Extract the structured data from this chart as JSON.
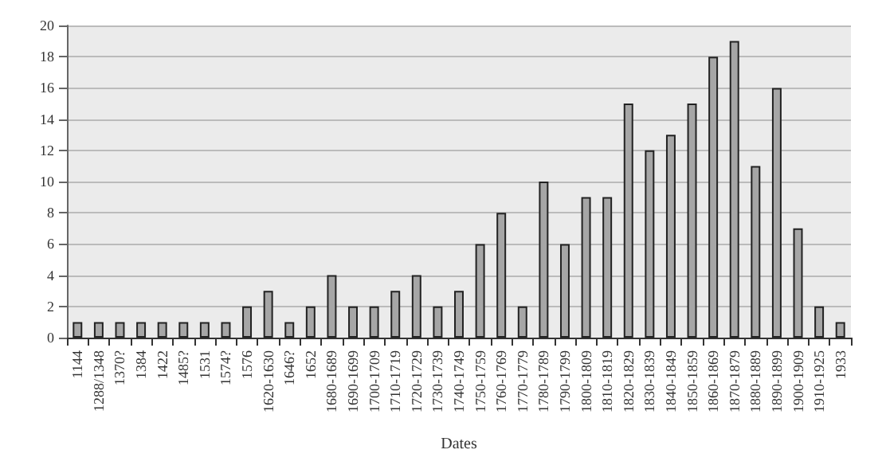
{
  "chart_data": {
    "type": "bar",
    "xlabel": "Dates",
    "categories": [
      "1144",
      "1288/1348",
      "1370?",
      "1384",
      "1422",
      "1485?",
      "1531",
      "1574?",
      "1576",
      "1620-1630",
      "1646?",
      "1652",
      "1680-1689",
      "1690-1699",
      "1700-1709",
      "1710-1719",
      "1720-1729",
      "1730-1739",
      "1740-1749",
      "1750-1759",
      "1760-1769",
      "1770-1779",
      "1780-1789",
      "1790-1799",
      "1800-1809",
      "1810-1819",
      "1820-1829",
      "1830-1839",
      "1840-1849",
      "1850-1859",
      "1860-1869",
      "1870-1879",
      "1880-1889",
      "1890-1899",
      "1900-1909",
      "1910-1925",
      "1933"
    ],
    "values": [
      1,
      1,
      1,
      1,
      1,
      1,
      1,
      1,
      2,
      3,
      1,
      2,
      4,
      2,
      2,
      3,
      4,
      2,
      3,
      6,
      8,
      2,
      10,
      6,
      9,
      9,
      15,
      12,
      13,
      15,
      18,
      19,
      11,
      16,
      7,
      2,
      1
    ],
    "color": "#a6a6a6",
    "ylim": [
      0,
      20
    ],
    "yticks": [
      0,
      2,
      4,
      6,
      8,
      10,
      12,
      14,
      16,
      18,
      20
    ],
    "grid": "y"
  }
}
